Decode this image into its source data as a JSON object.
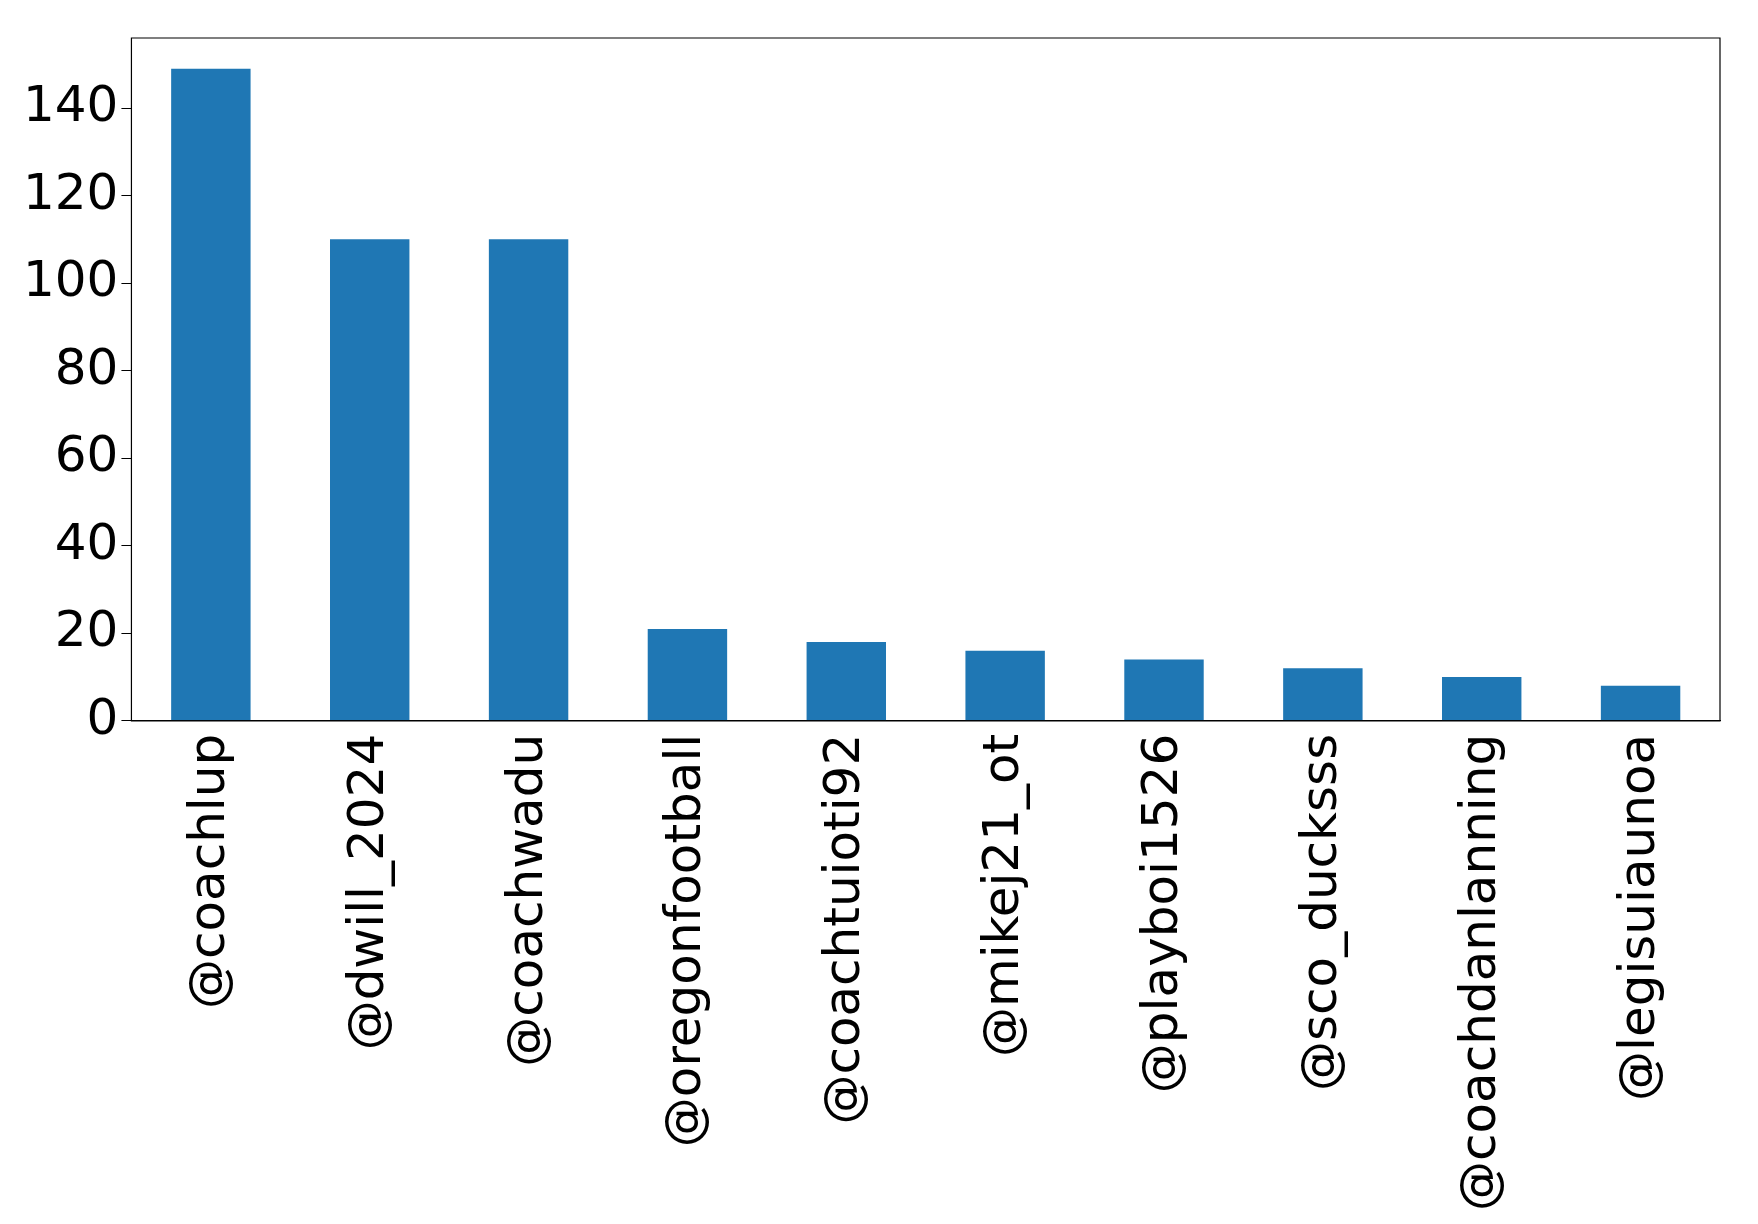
{
  "chart_data": {
    "type": "bar",
    "categories": [
      "@coachlup",
      "@dwill_2024",
      "@coachwadu",
      "@oregonfootball",
      "@coachtuioti92",
      "@mikej21_ot",
      "@playboi1526",
      "@sco_ducksss",
      "@coachdanlanning",
      "@legisuiaunoa"
    ],
    "values": [
      149,
      110,
      110,
      21,
      18,
      16,
      14,
      12,
      10,
      8
    ],
    "color": "#1f77b4",
    "ylim": [
      0,
      156
    ],
    "yticks": [
      0,
      20,
      40,
      60,
      80,
      100,
      120,
      140
    ],
    "grid": false,
    "legend": false
  }
}
